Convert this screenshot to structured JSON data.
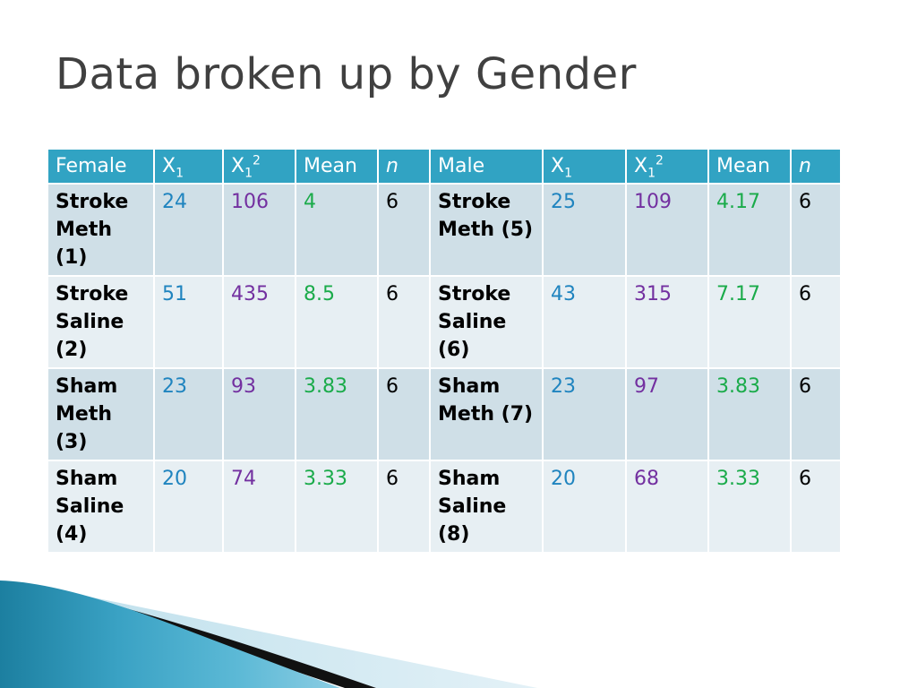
{
  "title": "Data broken up by Gender",
  "table": {
    "headers": {
      "female": "Female",
      "x1_base": "X",
      "x1_sub": "1",
      "x1sq_base": "X",
      "x1sq_sub": "1",
      "x1sq_sup": "2",
      "mean": "Mean",
      "n": "n",
      "male": "Male"
    },
    "rows": [
      {
        "f_label": "Stroke Meth (1)",
        "f_x1": "24",
        "f_x1sq": "106",
        "f_mean": "4",
        "f_n": "6",
        "m_label": "Stroke Meth (5)",
        "m_x1": "25",
        "m_x1sq": "109",
        "m_mean": "4.17",
        "m_n": "6"
      },
      {
        "f_label": "Stroke Saline (2)",
        "f_x1": "51",
        "f_x1sq": "435",
        "f_mean": "8.5",
        "f_n": "6",
        "m_label": "Stroke Saline (6)",
        "m_x1": "43",
        "m_x1sq": "315",
        "m_mean": "7.17",
        "m_n": "6"
      },
      {
        "f_label": "Sham Meth (3)",
        "f_x1": "23",
        "f_x1sq": "93",
        "f_mean": "3.83",
        "f_n": "6",
        "m_label": "Sham Meth (7)",
        "m_x1": "23",
        "m_x1sq": "97",
        "m_mean": "3.83",
        "m_n": "6"
      },
      {
        "f_label": "Sham Saline (4)",
        "f_x1": "20",
        "f_x1sq": "74",
        "f_mean": "3.33",
        "f_n": "6",
        "m_label": "Sham Saline (8)",
        "m_x1": "20",
        "m_x1sq": "68",
        "m_mean": "3.33",
        "m_n": "6"
      }
    ]
  },
  "colors": {
    "header_bg": "#31a3c3",
    "row_odd_bg": "#cfdfe7",
    "row_even_bg": "#e7eff3",
    "x1_text": "#1f84bf",
    "x1sq_text": "#7330a0",
    "mean_text": "#1aab4a",
    "title_text": "#404040"
  }
}
